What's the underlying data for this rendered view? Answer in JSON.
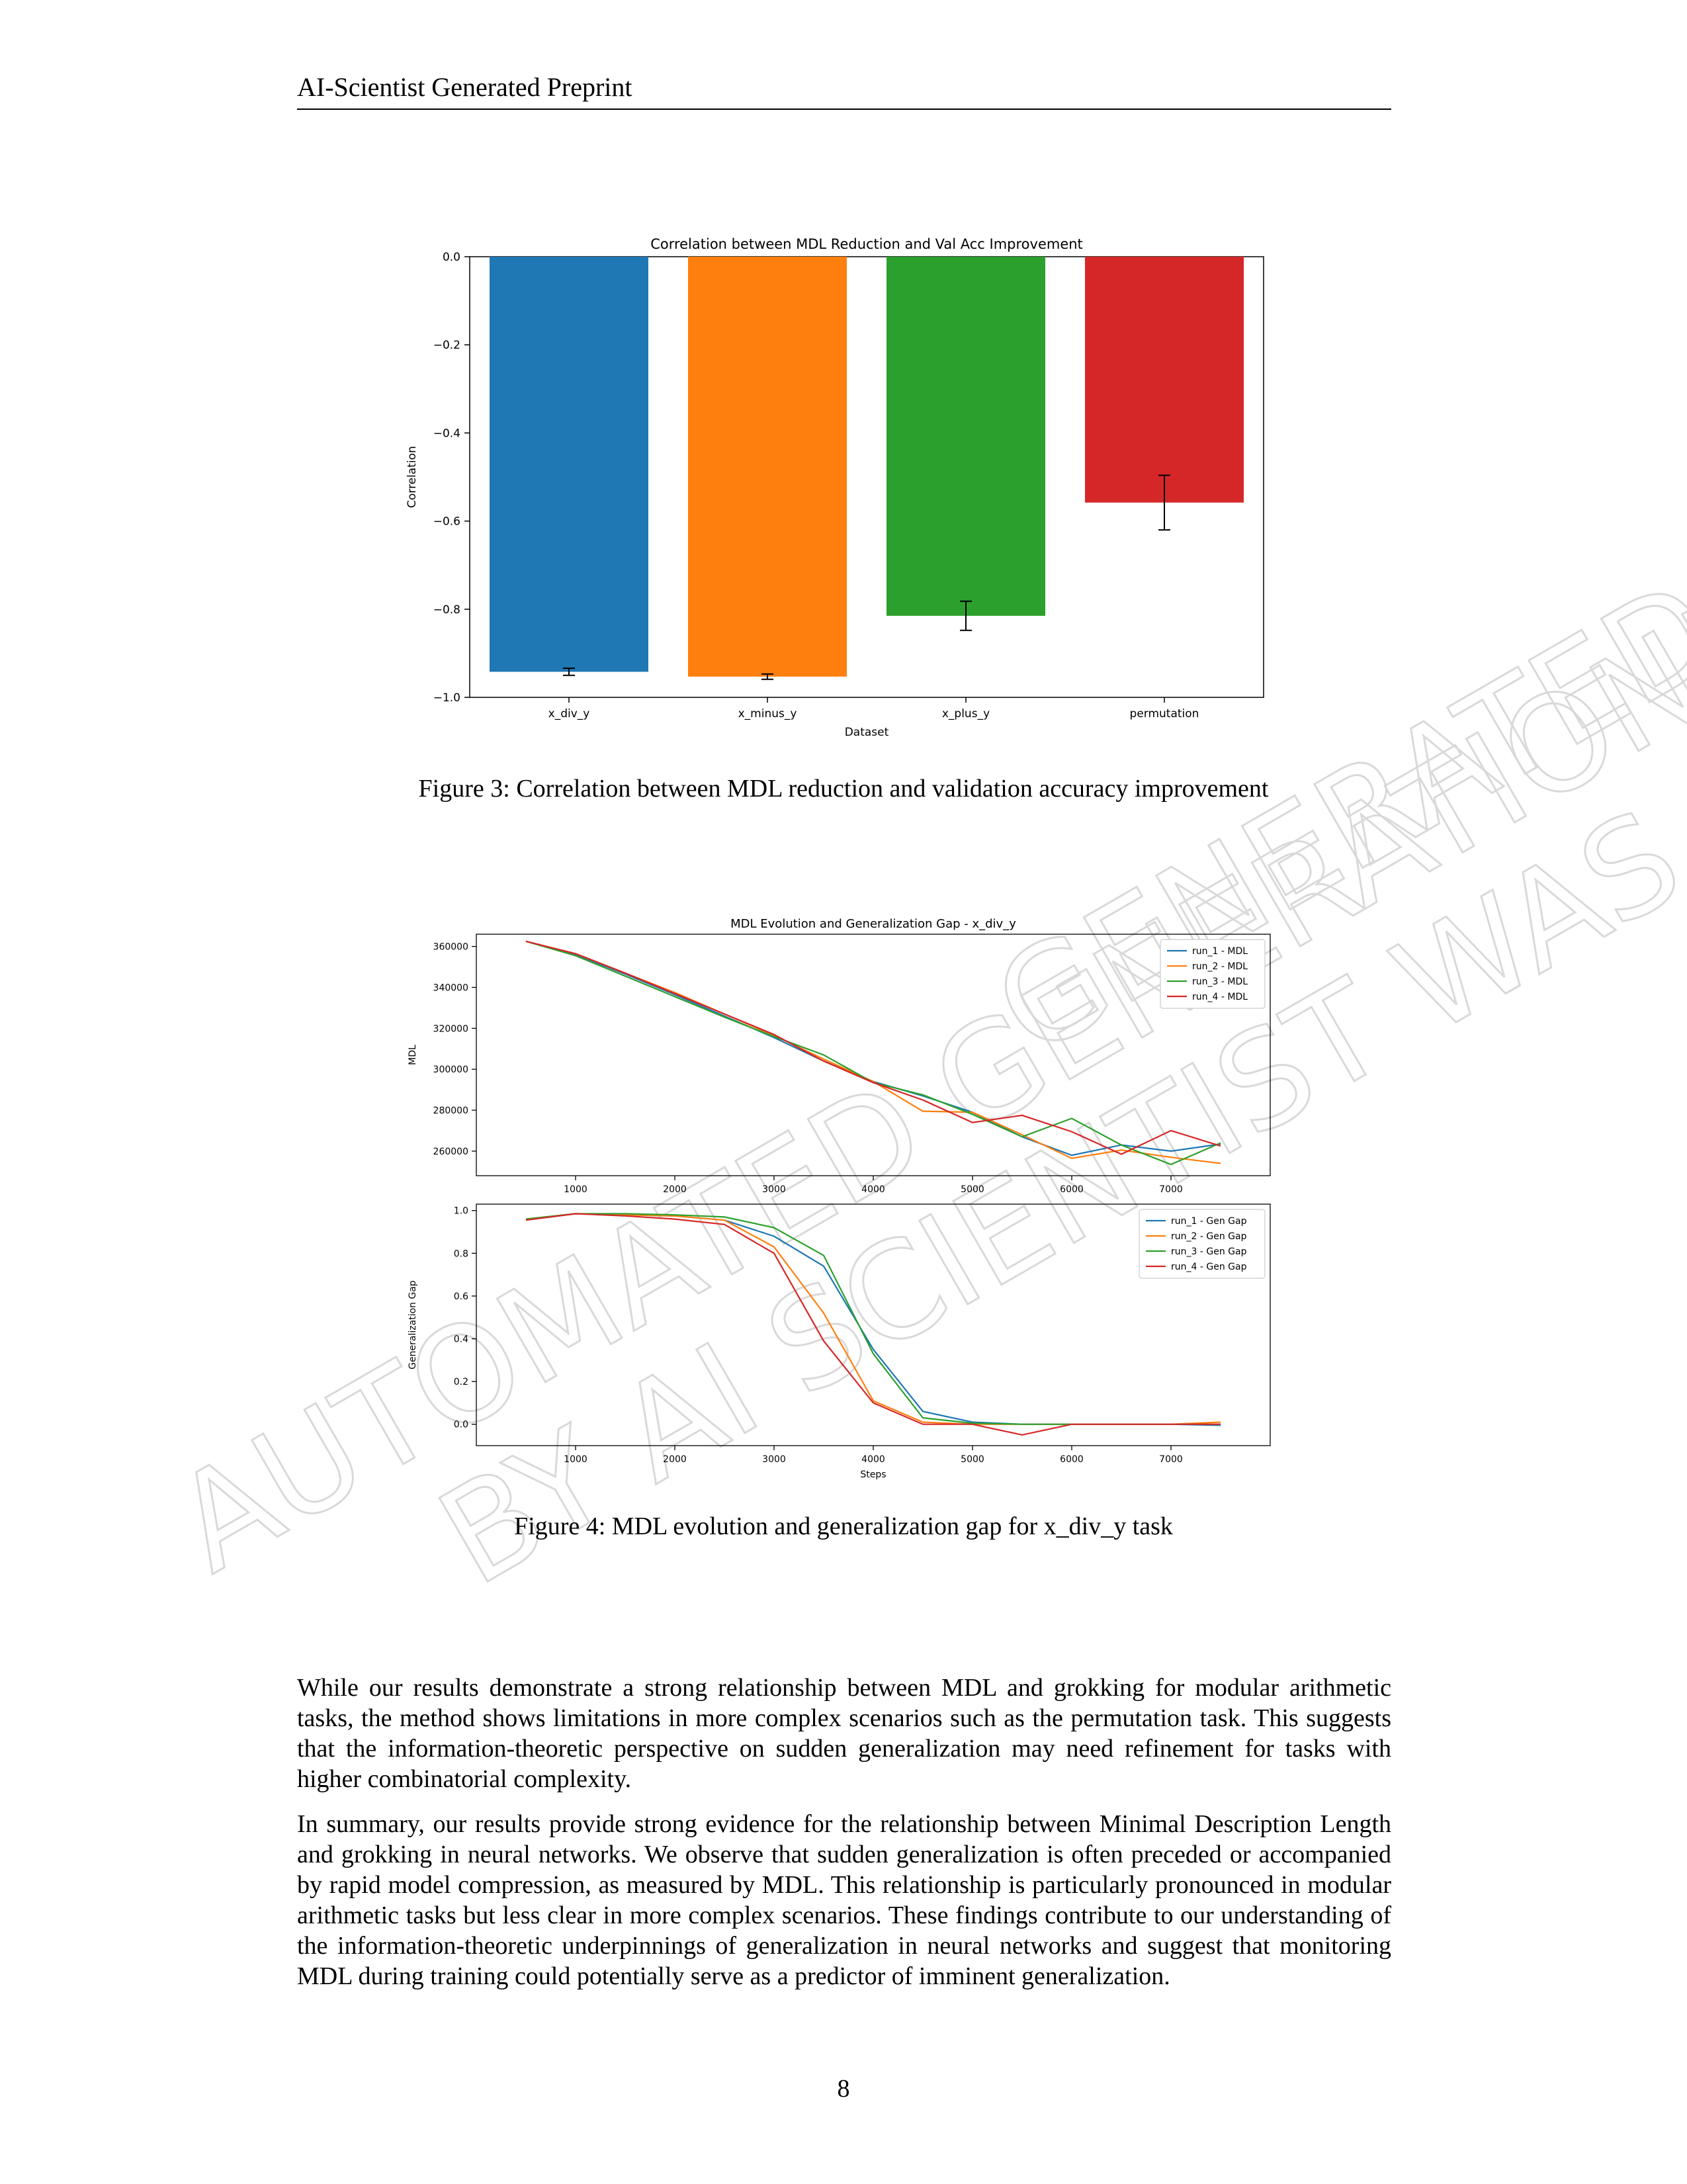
{
  "header": {
    "title": "AI-Scientist Generated Preprint"
  },
  "watermark": {
    "lines": [
      "AUTOMATED GENERATION!!!",
      "BY AI SCIENTIST WAS",
      "GENERATED"
    ],
    "color": "#d9d9d9"
  },
  "figure3": {
    "caption": "Figure 3: Correlation between MDL reduction and validation accuracy improvement",
    "chart_data": {
      "type": "bar",
      "title": "Correlation between MDL Reduction and Val Acc Improvement",
      "xlabel": "Dataset",
      "ylabel": "Correlation",
      "categories": [
        "x_div_y",
        "x_minus_y",
        "x_plus_y",
        "permutation"
      ],
      "values": [
        -0.942,
        -0.953,
        -0.815,
        -0.558
      ],
      "errors": [
        0.008,
        0.006,
        0.033,
        0.062
      ],
      "colors": [
        "#1f77b4",
        "#ff7f0e",
        "#2ca02c",
        "#d62728"
      ],
      "ylim": [
        -1.0,
        0.0
      ],
      "yticks": [
        0.0,
        -0.2,
        -0.4,
        -0.6,
        -0.8,
        -1.0
      ],
      "ytick_labels": [
        "0.0",
        "−0.2",
        "−0.4",
        "−0.6",
        "−0.8",
        "−1.0"
      ]
    }
  },
  "figure4": {
    "caption": "Figure 4: MDL evolution and generalization gap for x_div_y task",
    "chart_data": [
      {
        "type": "line",
        "title": "MDL Evolution and Generalization Gap - x_div_y",
        "xlabel": "",
        "ylabel": "MDL",
        "x": [
          500,
          1000,
          1500,
          2000,
          2500,
          3000,
          3500,
          4000,
          4500,
          5000,
          5500,
          6000,
          6500,
          7000,
          7500
        ],
        "xticks": [
          1000,
          2000,
          3000,
          4000,
          5000,
          6000,
          7000
        ],
        "yticks": [
          260000,
          280000,
          300000,
          320000,
          340000,
          360000
        ],
        "ylim": [
          248000,
          366000
        ],
        "xlim": [
          0,
          8000
        ],
        "legend": "upper-right",
        "series": [
          {
            "name": "run_1 - MDL",
            "color": "#1f77b4",
            "values": [
              362500,
              356000,
              346500,
              336500,
              326000,
              315500,
              304000,
              294000,
              287000,
              279000,
              267000,
              258000,
              263000,
              260000,
              263500
            ]
          },
          {
            "name": "run_2 - MDL",
            "color": "#ff7f0e",
            "values": [
              362500,
              356500,
              347000,
              337500,
              327000,
              316500,
              305000,
              294000,
              279500,
              279000,
              268000,
              256500,
              260500,
              257000,
              254000
            ]
          },
          {
            "name": "run_3 - MDL",
            "color": "#2ca02c",
            "values": [
              362500,
              355500,
              345500,
              335500,
              325500,
              316000,
              307000,
              293500,
              287500,
              278000,
              267000,
              276000,
              263000,
              253500,
              264000
            ]
          },
          {
            "name": "run_4 - MDL",
            "color": "#d62728",
            "values": [
              362500,
              356500,
              347000,
              337000,
              327000,
              317000,
              304000,
              293500,
              285000,
              274000,
              277500,
              269500,
              258500,
              270000,
              262500
            ]
          }
        ]
      },
      {
        "type": "line",
        "xlabel": "Steps",
        "ylabel": "Generalization Gap",
        "x": [
          500,
          1000,
          1500,
          2000,
          2500,
          3000,
          3500,
          4000,
          4500,
          5000,
          5500,
          6000,
          6500,
          7000,
          7500
        ],
        "xticks": [
          1000,
          2000,
          3000,
          4000,
          5000,
          6000,
          7000
        ],
        "yticks": [
          0.0,
          0.2,
          0.4,
          0.6,
          0.8,
          1.0
        ],
        "ylim": [
          -0.1,
          1.03
        ],
        "xlim": [
          0,
          8000
        ],
        "legend": "upper-right",
        "series": [
          {
            "name": "run_1 - Gen Gap",
            "color": "#1f77b4",
            "values": [
              0.96,
              0.985,
              0.98,
              0.975,
              0.955,
              0.88,
              0.74,
              0.35,
              0.06,
              0.01,
              0.0,
              0.0,
              0.0,
              0.0,
              -0.005
            ]
          },
          {
            "name": "run_2 - Gen Gap",
            "color": "#ff7f0e",
            "values": [
              0.96,
              0.985,
              0.98,
              0.975,
              0.955,
              0.83,
              0.52,
              0.11,
              0.01,
              0.0,
              0.0,
              0.0,
              0.0,
              0.0,
              0.01
            ]
          },
          {
            "name": "run_3 - Gen Gap",
            "color": "#2ca02c",
            "values": [
              0.96,
              0.985,
              0.985,
              0.98,
              0.97,
              0.92,
              0.79,
              0.33,
              0.03,
              0.005,
              0.0,
              0.0,
              0.0,
              0.0,
              0.0
            ]
          },
          {
            "name": "run_4 - Gen Gap",
            "color": "#d62728",
            "values": [
              0.955,
              0.985,
              0.975,
              0.96,
              0.935,
              0.8,
              0.39,
              0.1,
              0.0,
              0.0,
              -0.05,
              0.0,
              0.0,
              0.0,
              0.0
            ]
          }
        ]
      }
    ]
  },
  "body": {
    "para1": "While our results demonstrate a strong relationship between MDL and grokking for modular arithmetic tasks, the method shows limitations in more complex scenarios such as the permutation task. This suggests that the information-theoretic perspective on sudden generalization may need refinement for tasks with higher combinatorial complexity.",
    "para2": "In summary, our results provide strong evidence for the relationship between Minimal Description Length and grokking in neural networks. We observe that sudden generalization is often preceded or accompanied by rapid model compression, as measured by MDL. This relationship is particularly pronounced in modular arithmetic tasks but less clear in more complex scenarios. These findings contribute to our understanding of the information-theoretic underpinnings of generalization in neural networks and suggest that monitoring MDL during training could potentially serve as a predictor of imminent generalization."
  },
  "page_number": "8"
}
